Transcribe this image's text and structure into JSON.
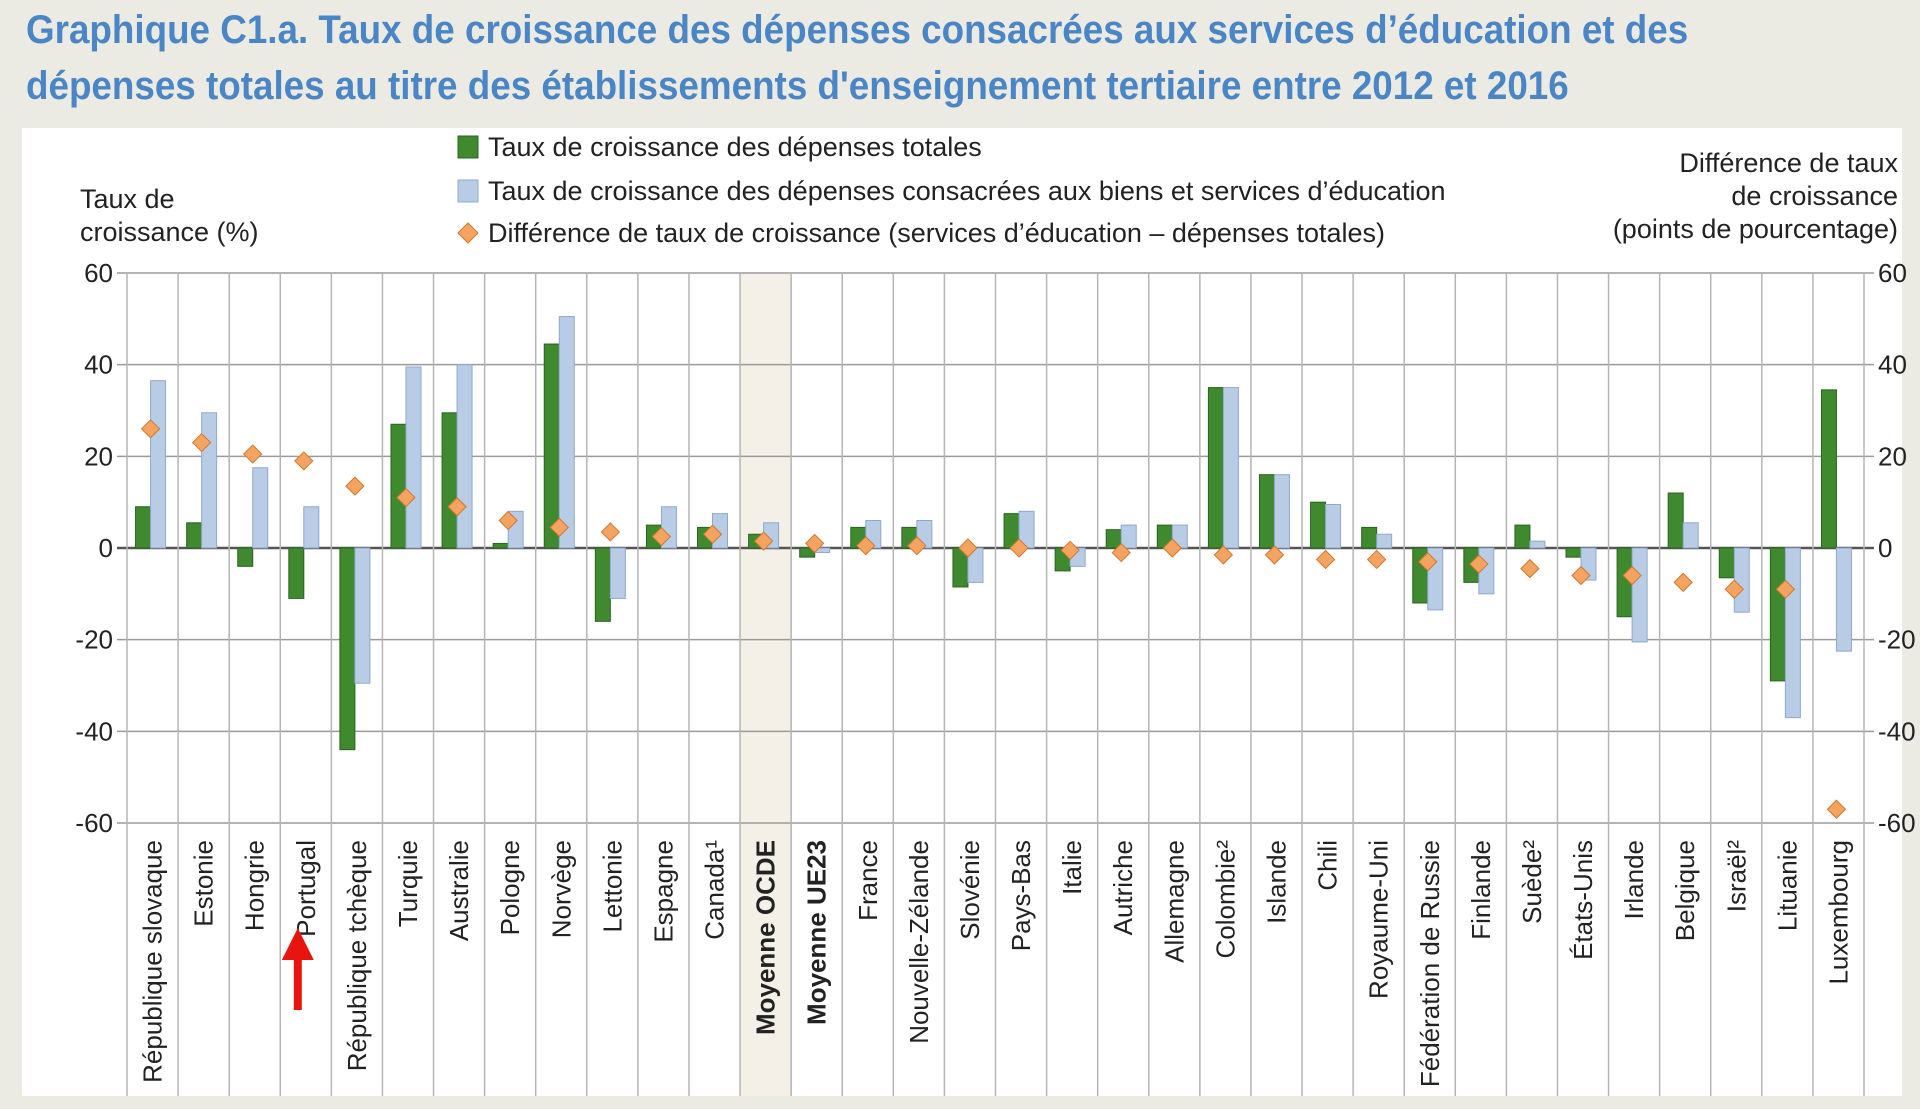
{
  "title": {
    "line1": "Graphique C1.a. Taux de croissance des dépenses consacrées aux services d’éducation et des",
    "line2": "dépenses totales au titre des établissements d'enseignement tertiaire entre 2012 et 2016"
  },
  "colors": {
    "total": "#3f8a2e",
    "education": "#b9cce6",
    "difference": "#f4a460",
    "title": "#4a86c5",
    "highlight": "#f4f0e8",
    "arrow": "#e8150f"
  },
  "highlight_icon": "red-up-arrow-icon",
  "chart_data": {
    "type": "bar",
    "legend": [
      "Taux de croissance des dépenses totales",
      "Taux de croissance des dépenses consacrées aux biens et services d’éducation",
      "Différence de taux de croissance (services d’éducation – dépenses totales)"
    ],
    "legend_placement": "top",
    "ylabel_left": [
      "Taux de",
      "croissance (%)"
    ],
    "ylabel_right": [
      "Différence de taux",
      "de croissance",
      "(points de pourcentage)"
    ],
    "ylim": [
      -60,
      60
    ],
    "yticks": [
      60,
      40,
      20,
      0,
      -20,
      -40,
      -60
    ],
    "y2ticks": [
      "60",
      "40",
      "20",
      "0",
      "-20",
      "-40",
      "-60"
    ],
    "grid": true,
    "categories": [
      "République slovaque",
      "Estonie",
      "Hongrie",
      "Portugal",
      "République tchèque",
      "Turquie",
      "Australie",
      "Pologne",
      "Norvège",
      "Lettonie",
      "Espagne",
      "Canada¹",
      "Moyenne OCDE",
      "Moyenne UE23",
      "France",
      "Nouvelle-Zélande",
      "Slovénie",
      "Pays-Bas",
      "Italie",
      "Autriche",
      "Allemagne",
      "Colombie²",
      "Islande",
      "Chili",
      "Royaume-Uni",
      "Fédération de Russie",
      "Finlande",
      "Suède²",
      "États-Unis",
      "Irlande",
      "Belgique",
      "Israël²",
      "Lituanie",
      "Luxembourg"
    ],
    "bold_categories": [
      "Moyenne OCDE",
      "Moyenne UE23"
    ],
    "shaded_category": "Moyenne OCDE",
    "highlighted_category": "Portugal",
    "series": [
      {
        "name": "Taux de croissance des dépenses totales",
        "type": "bar",
        "values": [
          9,
          5.5,
          -4,
          -11,
          -44,
          27,
          29.5,
          1,
          44.5,
          -16,
          5,
          4.5,
          3,
          -2,
          4.5,
          4.5,
          -8.5,
          7.5,
          -5,
          4,
          5,
          35,
          16,
          10,
          4.5,
          -12,
          -7.5,
          5,
          -2,
          -15,
          12,
          -6.5,
          -29,
          34.5
        ]
      },
      {
        "name": "Taux de croissance des dépenses consacrées aux biens et services d’éducation",
        "type": "bar",
        "values": [
          36.5,
          29.5,
          17.5,
          9,
          -29.5,
          39.5,
          40,
          8,
          50.5,
          -11,
          9,
          7.5,
          5.5,
          -1,
          6,
          6,
          -7.5,
          8,
          -4,
          5,
          5,
          35,
          16,
          9.5,
          3,
          -13.5,
          -10,
          1.5,
          -7,
          -20.5,
          5.5,
          -14,
          -37,
          -22.5
        ]
      },
      {
        "name": "Différence de taux de croissance (services d’éducation – dépenses totales)",
        "type": "scatter",
        "values": [
          26,
          23,
          20.5,
          19,
          13.5,
          11,
          9,
          6,
          4.5,
          3.5,
          2.5,
          3,
          1.5,
          1,
          0.5,
          0.5,
          0,
          0,
          -0.5,
          -1,
          0,
          -1.5,
          -1.5,
          -2.5,
          -2.5,
          -3,
          -3.5,
          -4.5,
          -6,
          -6,
          -7.5,
          -9,
          -9,
          -57
        ]
      }
    ]
  }
}
